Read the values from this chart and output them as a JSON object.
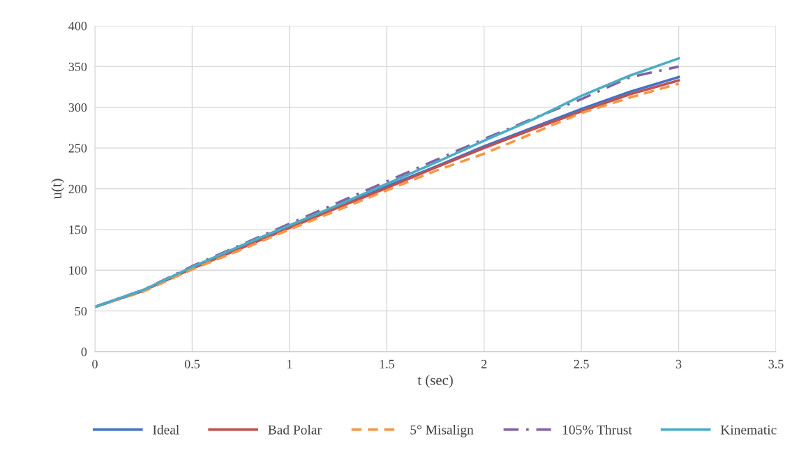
{
  "chart_data": {
    "type": "line",
    "xlabel": "t (sec)",
    "ylabel": "u(t)",
    "x": [
      0,
      0.25,
      0.5,
      0.75,
      1,
      1.25,
      1.5,
      1.75,
      2,
      2.25,
      2.5,
      2.75,
      3
    ],
    "xlim": [
      0,
      3.5
    ],
    "xticks": [
      0,
      0.5,
      1,
      1.5,
      2,
      2.5,
      3,
      3.5
    ],
    "ylim": [
      0,
      400
    ],
    "yticks": [
      0,
      50,
      100,
      150,
      200,
      250,
      300,
      350,
      400
    ],
    "grid": true,
    "legend": "bottom",
    "marker": "none",
    "series": [
      {
        "name": "Ideal",
        "color": "#4472c4",
        "line_style": "solid",
        "values": [
          55,
          75,
          103,
          128,
          153,
          178,
          203,
          227,
          252,
          275,
          298,
          319,
          337
        ]
      },
      {
        "name": "Bad Polar",
        "color": "#c0504d",
        "line_style": "solid",
        "values": [
          55,
          75,
          102,
          127,
          152,
          177,
          201,
          226,
          250,
          273,
          295,
          316,
          333
        ]
      },
      {
        "name": "5° Misalign",
        "color": "#f79646",
        "line_style": "dashed",
        "values": [
          55,
          74,
          101,
          125,
          150,
          174,
          198,
          222,
          243,
          268,
          293,
          312,
          329
        ]
      },
      {
        "name": "105% Thrust",
        "color": "#8064a2",
        "line_style": "dashdot",
        "values": [
          55,
          76,
          105,
          131,
          157,
          183,
          209,
          235,
          261,
          286,
          310,
          337,
          350
        ]
      },
      {
        "name": "Kinematic",
        "color": "#4bacc6",
        "line_style": "solid",
        "values": [
          55,
          76,
          104,
          130,
          155,
          180,
          206,
          232,
          259,
          285,
          314,
          339,
          360
        ]
      }
    ]
  }
}
